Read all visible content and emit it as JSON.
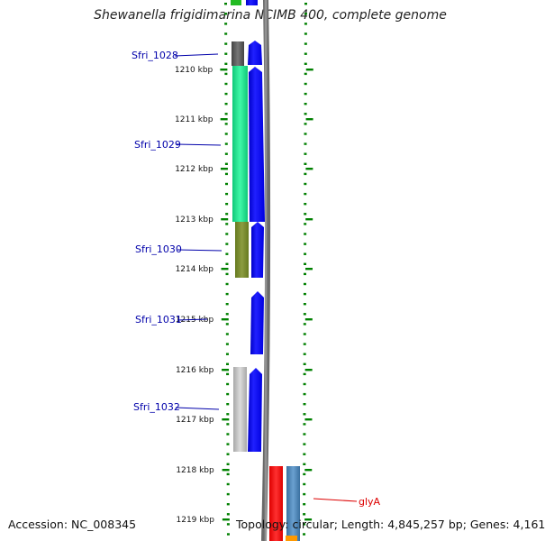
{
  "title": "Shewanella frigidimarina NCIMB 400, complete genome",
  "footer": {
    "accession": "Accession: NC_008345",
    "topology": "Topology: circular; Length: 4,845,257 bp; Genes: 4,161"
  },
  "kbp_ticks": [
    "1210 kbp",
    "1211 kbp",
    "1212 kbp",
    "1213 kbp",
    "1214 kbp",
    "1215 kbp",
    "1216 kbp",
    "1217 kbp",
    "1218 kbp",
    "1219 kbp"
  ],
  "genes": [
    {
      "name": "Sfri_1028",
      "label_color": "#0000aa"
    },
    {
      "name": "Sfri_1029",
      "label_color": "#0000aa"
    },
    {
      "name": "Sfri_1030",
      "label_color": "#0000aa"
    },
    {
      "name": "Sfri_1031",
      "label_color": "#0000aa"
    },
    {
      "name": "Sfri_1032",
      "label_color": "#0000aa"
    },
    {
      "name": "glyA",
      "label_color": "#dd0000"
    }
  ],
  "colors": {
    "cds": "#0000ff",
    "backbone": "#808080",
    "ticks": "#008000",
    "label_line_blue": "#0000aa",
    "label_line_red": "#dd0000",
    "cog_dark_gray": "#555555",
    "cog_teal": "#20e890",
    "cog_olive": "#7a8a30",
    "cog_light_gray": "#c0c0c0",
    "cog_red": "#ff0000",
    "cog_steelblue": "#4682b4",
    "cog_orange": "#ff9900",
    "cog_green": "#22bb22"
  }
}
